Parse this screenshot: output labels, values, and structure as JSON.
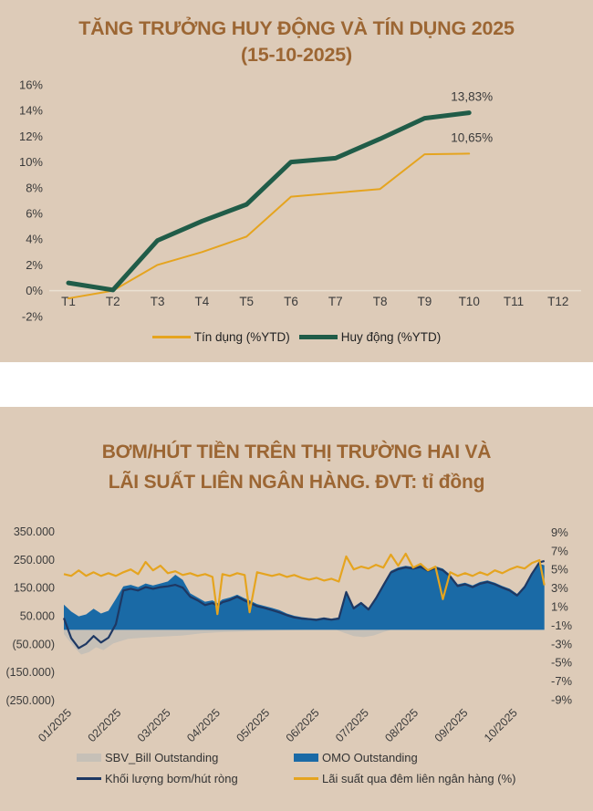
{
  "accent_colors": {
    "background": "#DDCBB8",
    "title_brown": "#9C6633",
    "gold": "#E5A41F",
    "dark_green": "#205C48",
    "blue": "#1A6AA6",
    "navy": "#1E3863",
    "gray": "#C6C0B7"
  },
  "chart_data": [
    {
      "type": "line",
      "title": "TĂNG TRƯỞNG HUY ĐỘNG VÀ TÍN DỤNG 2025",
      "subtitle": "(15-10-2025)",
      "categories": [
        "T1",
        "T2",
        "T3",
        "T4",
        "T5",
        "T6",
        "T7",
        "T8",
        "T9",
        "T10",
        "T11",
        "T12"
      ],
      "y_ticks": [
        "16%",
        "14%",
        "12%",
        "10%",
        "8%",
        "6%",
        "4%",
        "2%",
        "0%",
        "-2%"
      ],
      "ylim": [
        -2,
        16
      ],
      "grid": "zero-line-only",
      "legend_position": "bottom",
      "series": [
        {
          "name": "Tín dụng (%YTD)",
          "color": "#E5A41F",
          "width": 2,
          "values": [
            -0.6,
            0.0,
            2.0,
            3.0,
            4.2,
            7.3,
            7.6,
            7.9,
            10.6,
            10.65,
            null,
            null
          ]
        },
        {
          "name": "Huy động (%YTD)",
          "color": "#205C48",
          "width": 5,
          "values": [
            0.6,
            0.05,
            3.9,
            5.4,
            6.7,
            10.0,
            10.3,
            11.8,
            13.4,
            13.83,
            null,
            null
          ]
        }
      ],
      "annotations": [
        {
          "series": 1,
          "text": "13,83%"
        },
        {
          "series": 0,
          "text": "10,65%"
        }
      ]
    },
    {
      "type": "area",
      "title_line1": "BƠM/HÚT TIỀN TRÊN THỊ TRƯỜNG HAI VÀ",
      "title_line2": "LÃI SUẤT LIÊN NGÂN HÀNG. ĐVT: tỉ đồng",
      "unit": "tỉ đồng",
      "x_ticks": [
        "01/2025",
        "02/2025",
        "03/2025",
        "04/2025",
        "05/2025",
        "06/2025",
        "07/2025",
        "08/2025",
        "09/2025",
        "10/2025"
      ],
      "left_axis": {
        "labels": [
          "350.000",
          "250.000",
          "150.000",
          "50.000",
          "(50.000)",
          "(150.000)",
          "(250.000)"
        ],
        "values": [
          350000,
          250000,
          150000,
          50000,
          -50000,
          -150000,
          -250000
        ]
      },
      "right_axis": {
        "labels": [
          "9%",
          "7%",
          "5%",
          "3%",
          "1%",
          "-1%",
          "-3%",
          "-5%",
          "-7%",
          "-9%"
        ],
        "values": [
          9,
          7,
          5,
          3,
          1,
          -1,
          -3,
          -5,
          -7,
          -9
        ]
      },
      "legend_position": "bottom",
      "series": [
        {
          "name": "SBV_Bill Outstanding",
          "type": "area",
          "axis": "left",
          "color": "#C6C0B7",
          "swatch": "bar",
          "x": [
            0,
            0.2,
            0.35,
            0.5,
            0.65,
            0.8,
            1.0,
            1.3,
            1.6,
            2.0,
            2.4,
            2.8,
            3.2,
            3.8,
            4.4,
            5.0,
            5.5,
            5.65,
            5.85,
            6.05,
            6.25,
            6.45,
            6.6,
            9.7
          ],
          "values": [
            -15000,
            -60000,
            -88000,
            -80000,
            -62000,
            -72000,
            -48000,
            -32000,
            -28000,
            -24000,
            -20000,
            -12000,
            -8000,
            -5000,
            -2000,
            0,
            0,
            -10000,
            -22000,
            -26000,
            -20000,
            -8000,
            0,
            0
          ]
        },
        {
          "name": "OMO Outstanding",
          "type": "area",
          "axis": "left",
          "color": "#1A6AA6",
          "swatch": "bar",
          "x": [
            0,
            0.15,
            0.3,
            0.45,
            0.6,
            0.75,
            0.9,
            1.05,
            1.2,
            1.35,
            1.5,
            1.65,
            1.8,
            1.95,
            2.1,
            2.25,
            2.4,
            2.55,
            2.7,
            2.85,
            3.0,
            3.1,
            3.2,
            3.35,
            3.5,
            3.65,
            3.75,
            3.9,
            4.05,
            4.2,
            4.35,
            4.5,
            4.65,
            4.8,
            4.95,
            5.1,
            5.25,
            5.4,
            5.55,
            5.7,
            5.85,
            6.0,
            6.15,
            6.3,
            6.45,
            6.6,
            6.75,
            6.9,
            7.05,
            7.2,
            7.35,
            7.5,
            7.65,
            7.8,
            7.95,
            8.1,
            8.25,
            8.4,
            8.55,
            8.7,
            8.85,
            9.0,
            9.15,
            9.3,
            9.45,
            9.6,
            9.7
          ],
          "values": [
            90000,
            65000,
            48000,
            55000,
            75000,
            58000,
            68000,
            110000,
            155000,
            160000,
            152000,
            165000,
            158000,
            165000,
            172000,
            196000,
            178000,
            130000,
            115000,
            100000,
            105000,
            95000,
            108000,
            115000,
            125000,
            112000,
            105000,
            92000,
            85000,
            78000,
            70000,
            58000,
            50000,
            45000,
            42000,
            40000,
            44000,
            40000,
            44000,
            140000,
            82000,
            100000,
            78000,
            118000,
            165000,
            210000,
            222000,
            228000,
            224000,
            230000,
            216000,
            226000,
            218000,
            196000,
            162000,
            168000,
            158000,
            170000,
            176000,
            168000,
            156000,
            146000,
            128000,
            158000,
            205000,
            235000,
            230000
          ]
        },
        {
          "name": "Khối lượng bơm/hút ròng",
          "type": "line",
          "axis": "left",
          "color": "#1E3863",
          "width": 2.2,
          "swatch": "line",
          "x": [
            0,
            0.15,
            0.3,
            0.45,
            0.6,
            0.75,
            0.9,
            1.05,
            1.2,
            1.35,
            1.5,
            1.65,
            1.8,
            1.95,
            2.1,
            2.25,
            2.4,
            2.55,
            2.7,
            2.85,
            3.0,
            3.1,
            3.2,
            3.35,
            3.5,
            3.65,
            3.75,
            3.9,
            4.05,
            4.2,
            4.35,
            4.5,
            4.65,
            4.8,
            4.95,
            5.1,
            5.25,
            5.4,
            5.55,
            5.7,
            5.85,
            6.0,
            6.15,
            6.3,
            6.45,
            6.6,
            6.75,
            6.9,
            7.05,
            7.2,
            7.35,
            7.5,
            7.65,
            7.8,
            7.95,
            8.1,
            8.25,
            8.4,
            8.55,
            8.7,
            8.85,
            9.0,
            9.15,
            9.3,
            9.45,
            9.6,
            9.7
          ],
          "values": [
            42000,
            -30000,
            -65000,
            -50000,
            -22000,
            -45000,
            -28000,
            20000,
            140000,
            146000,
            140000,
            152000,
            146000,
            152000,
            155000,
            160000,
            150000,
            118000,
            105000,
            88000,
            95000,
            86000,
            98000,
            106000,
            118000,
            104000,
            96000,
            84000,
            78000,
            70000,
            62000,
            52000,
            44000,
            40000,
            38000,
            35000,
            40000,
            36000,
            40000,
            134000,
            76000,
            95000,
            72000,
            112000,
            158000,
            204000,
            216000,
            222000,
            218000,
            224000,
            210000,
            220000,
            212000,
            190000,
            156000,
            162000,
            152000,
            164000,
            170000,
            162000,
            150000,
            140000,
            122000,
            152000,
            200000,
            240000,
            245000
          ]
        },
        {
          "name": "Lãi suất qua đêm liên ngân hàng (%)",
          "type": "line",
          "axis": "right",
          "color": "#E5A41F",
          "width": 2.2,
          "swatch": "line",
          "x": [
            0,
            0.15,
            0.3,
            0.45,
            0.6,
            0.75,
            0.9,
            1.05,
            1.2,
            1.35,
            1.5,
            1.65,
            1.8,
            1.95,
            2.1,
            2.25,
            2.4,
            2.55,
            2.7,
            2.85,
            3.0,
            3.1,
            3.2,
            3.35,
            3.5,
            3.65,
            3.75,
            3.9,
            4.05,
            4.2,
            4.35,
            4.5,
            4.65,
            4.8,
            4.95,
            5.1,
            5.25,
            5.4,
            5.55,
            5.7,
            5.85,
            6.0,
            6.15,
            6.3,
            6.45,
            6.6,
            6.75,
            6.9,
            7.05,
            7.2,
            7.35,
            7.5,
            7.65,
            7.8,
            7.95,
            8.1,
            8.25,
            8.4,
            8.55,
            8.7,
            8.85,
            9.0,
            9.15,
            9.3,
            9.45,
            9.6,
            9.7
          ],
          "values": [
            4.5,
            4.3,
            4.9,
            4.3,
            4.7,
            4.3,
            4.6,
            4.3,
            4.7,
            5.0,
            4.5,
            5.8,
            4.9,
            5.4,
            4.6,
            4.8,
            4.4,
            4.6,
            4.3,
            4.5,
            4.2,
            0.2,
            4.5,
            4.3,
            4.6,
            4.4,
            0.4,
            4.7,
            4.5,
            4.3,
            4.5,
            4.2,
            4.4,
            4.1,
            3.9,
            4.1,
            3.8,
            4.0,
            3.7,
            6.4,
            5.0,
            5.3,
            5.1,
            5.5,
            5.2,
            6.6,
            5.4,
            6.7,
            5.2,
            5.6,
            4.9,
            5.3,
            1.8,
            4.7,
            4.3,
            4.6,
            4.3,
            4.7,
            4.4,
            4.9,
            4.6,
            5.0,
            5.3,
            5.1,
            5.7,
            6.0,
            3.3
          ]
        }
      ]
    }
  ]
}
